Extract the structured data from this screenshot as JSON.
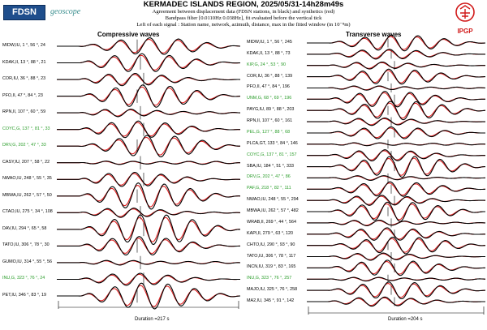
{
  "header": {
    "title": "KERMADEC ISLANDS REGION, 2025/05/31-14h28m49s",
    "line2": "Agreement between displacement data (FDSN stations, in black) and synthetics (red)",
    "line3": "Bandpass filter [0.0110Hz 0.038Hz], fit evaluated before the vertical tick",
    "line4": "Left of each signal : Station name, network, azimuth, distance, max in the fitted window (in 10⁻⁸m)",
    "logo_left": "FDSN",
    "logo_mid": "geoscope",
    "logo_right": "IPGP"
  },
  "colors": {
    "data": "#000000",
    "synthetic": "#e02020",
    "highlight": "#2a9d2a"
  },
  "chart_data": [
    {
      "type": "line",
      "title": "Compressive waves",
      "duration_label": "Duration =217 s",
      "series_legend": [
        "data (black)",
        "synthetics (red)"
      ],
      "traces": [
        {
          "label": "MIDW,IU, 1 °, 56 °, 24",
          "highlight": false,
          "amp": 0.55,
          "phase": 0.3
        },
        {
          "label": "KDAK,II, 13 °, 88 °, 21",
          "highlight": false,
          "amp": 0.75,
          "phase": 1.1
        },
        {
          "label": "COR,IU, 36 °, 88 °, 23",
          "highlight": false,
          "amp": 0.9,
          "phase": 2.0
        },
        {
          "label": "PFO,II, 47 °, 84 °, 23",
          "highlight": false,
          "amp": 0.8,
          "phase": 0.7
        },
        {
          "label": "RPN,II, 107 °, 60 °, 59",
          "highlight": false,
          "amp": 1.0,
          "phase": 2.6
        },
        {
          "label": "COYC,G, 137 °, 81 °, 33",
          "highlight": true,
          "amp": 0.85,
          "phase": 1.5
        },
        {
          "label": "DRV,G, 202 °, 47 °, 33",
          "highlight": true,
          "amp": 0.7,
          "phase": 0.2
        },
        {
          "label": "CASY,IU, 207 °, 58 °, 22",
          "highlight": false,
          "amp": 0.75,
          "phase": 3.0
        },
        {
          "label": "NWAO,IU, 248 °, 55 °, 35",
          "highlight": false,
          "amp": 0.95,
          "phase": 1.9
        },
        {
          "label": "MBWA,IU, 262 °, 57 °, 50",
          "highlight": false,
          "amp": 1.0,
          "phase": 0.9
        },
        {
          "label": "CTAO,IU, 275 °, 34 °, 108",
          "highlight": false,
          "amp": 0.9,
          "phase": 2.3
        },
        {
          "label": "DAV,IU, 294 °, 65 °, 58",
          "highlight": false,
          "amp": 1.0,
          "phase": 0.4
        },
        {
          "label": "TATO,IU, 306 °, 78 °, 30",
          "highlight": false,
          "amp": 0.85,
          "phase": 1.3
        },
        {
          "label": "GUMO,IU, 314 °, 55 °, 56",
          "highlight": false,
          "amp": 0.8,
          "phase": 2.8
        },
        {
          "label": "INU,G, 323 °, 76 °, 24",
          "highlight": true,
          "amp": 0.7,
          "phase": 1.7
        },
        {
          "label": "PET,IU, 346 °, 83 °, 19",
          "highlight": false,
          "amp": 0.9,
          "phase": 0.6
        }
      ]
    },
    {
      "type": "line",
      "title": "Transverse waves",
      "duration_label": "Duration =204 s",
      "series_legend": [
        "data (black)",
        "synthetics (red)"
      ],
      "traces": [
        {
          "label": "MIDW,IU, 1 °, 56 °, 245",
          "highlight": false,
          "amp": 0.8,
          "phase": 0.5
        },
        {
          "label": "KDAK,II, 13 °, 88 °, 73",
          "highlight": false,
          "amp": 0.7,
          "phase": 1.4
        },
        {
          "label": "KIP,G, 24 °, 53 °, 90",
          "highlight": true,
          "amp": 0.9,
          "phase": 2.2
        },
        {
          "label": "COR,IU, 36 °, 88 °, 139",
          "highlight": false,
          "amp": 0.85,
          "phase": 0.9
        },
        {
          "label": "PFO,II, 47 °, 84 °, 196",
          "highlight": false,
          "amp": 0.95,
          "phase": 2.7
        },
        {
          "label": "UNM,G, 68 °, 69 °, 196",
          "highlight": true,
          "amp": 1.0,
          "phase": 1.2
        },
        {
          "label": "PAYG,IU, 89 °, 88 °, 203",
          "highlight": false,
          "amp": 0.9,
          "phase": 0.3
        },
        {
          "label": "RPN,II, 107 °, 60 °, 161",
          "highlight": false,
          "amp": 0.8,
          "phase": 2.0
        },
        {
          "label": "PEL,G, 127 °, 88 °, 68",
          "highlight": true,
          "amp": 0.7,
          "phase": 1.0
        },
        {
          "label": "PLCA,GT, 133 °, 84 °, 146",
          "highlight": false,
          "amp": 0.85,
          "phase": 2.9
        },
        {
          "label": "COYC,G, 137 °, 81 °, 157",
          "highlight": true,
          "amp": 0.9,
          "phase": 1.6
        },
        {
          "label": "SBA,IU, 184 °, 51 °, 333",
          "highlight": false,
          "amp": 1.0,
          "phase": 0.1
        },
        {
          "label": "DRV,G, 202 °, 47 °, 86",
          "highlight": true,
          "amp": 0.75,
          "phase": 2.4
        },
        {
          "label": "PAF,G, 218 °, 82 °, 111",
          "highlight": true,
          "amp": 0.8,
          "phase": 0.8
        },
        {
          "label": "NWAO,IU, 248 °, 55 °, 294",
          "highlight": false,
          "amp": 1.0,
          "phase": 1.9
        },
        {
          "label": "MBWA,IU, 262 °, 57 °, 482",
          "highlight": false,
          "amp": 1.0,
          "phase": 0.6
        },
        {
          "label": "WRAB,II, 269 °, 44 °, 564",
          "highlight": false,
          "amp": 1.0,
          "phase": 2.5
        },
        {
          "label": "KAPI,II, 279 °, 63 °, 120",
          "highlight": false,
          "amp": 0.85,
          "phase": 1.3
        },
        {
          "label": "CHTO,IU, 290 °, 93 °, 90",
          "highlight": false,
          "amp": 0.8,
          "phase": 0.2
        },
        {
          "label": "TATO,IU, 306 °, 78 °, 117",
          "highlight": false,
          "amp": 0.85,
          "phase": 2.1
        },
        {
          "label": "INCN,IU, 319 °, 83 °, 165",
          "highlight": false,
          "amp": 0.9,
          "phase": 1.0
        },
        {
          "label": "INU,G, 323 °, 76 °, 257",
          "highlight": true,
          "amp": 0.95,
          "phase": 2.8
        },
        {
          "label": "MAJO,IU, 325 °, 76 °, 258",
          "highlight": false,
          "amp": 0.9,
          "phase": 0.7
        },
        {
          "label": "MA2,IU, 345 °, 91 °, 142",
          "highlight": false,
          "amp": 0.85,
          "phase": 1.8
        }
      ]
    }
  ]
}
